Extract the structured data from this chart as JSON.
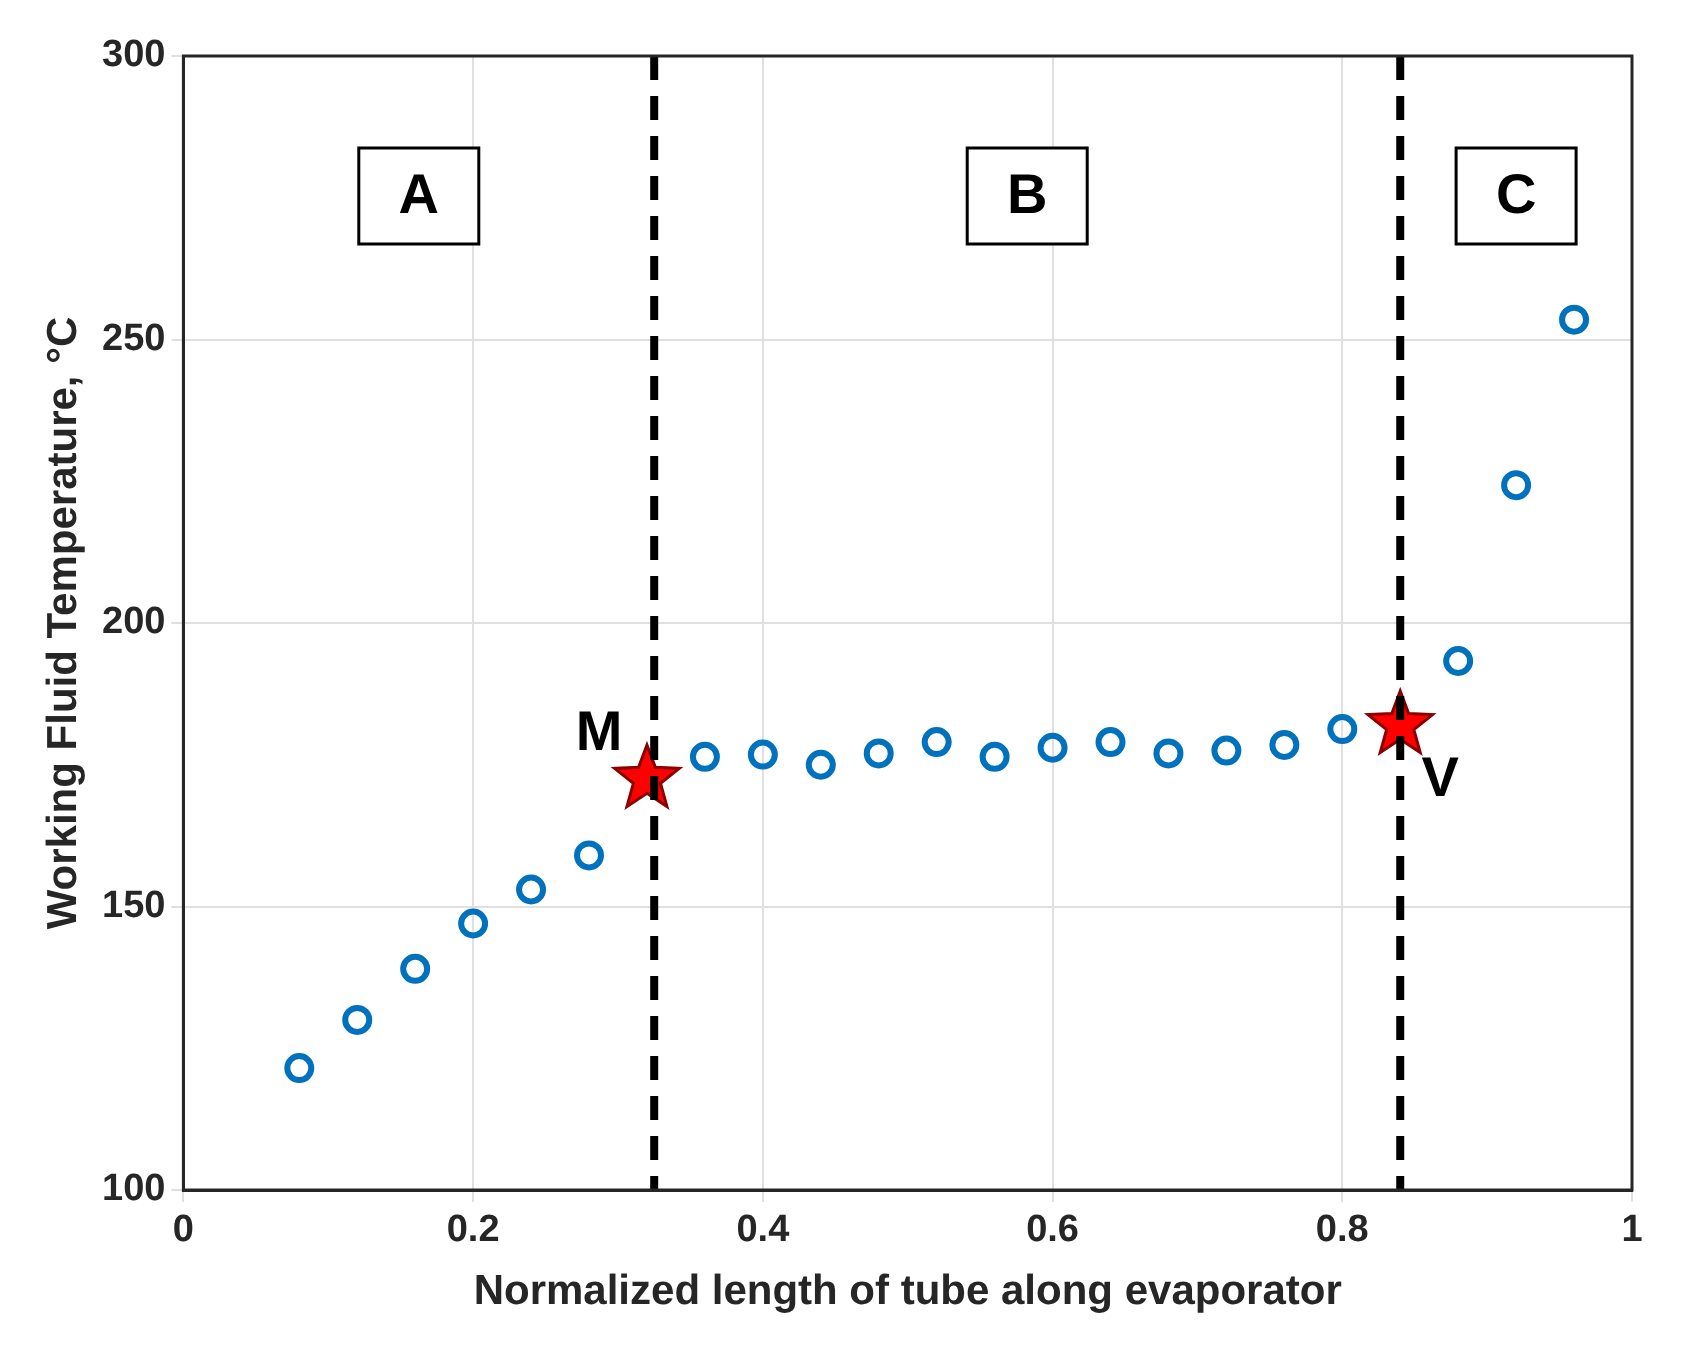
{
  "chart_data": {
    "type": "scatter",
    "xlabel": "Normalized length of tube along evaporator",
    "ylabel": "Working Fluid Temperature, °C",
    "xlim": [
      0,
      1
    ],
    "ylim": [
      100,
      300
    ],
    "xticks": [
      0,
      0.2,
      0.4,
      0.6,
      0.8,
      1
    ],
    "yticks": [
      100,
      150,
      200,
      250,
      300
    ],
    "grid": true,
    "legend": false,
    "series": [
      {
        "color": "#0072bd",
        "marker": "circle",
        "x": [
          0.08,
          0.12,
          0.16,
          0.2,
          0.24,
          0.28,
          0.36,
          0.4,
          0.44,
          0.48,
          0.52,
          0.56,
          0.6,
          0.64,
          0.68,
          0.72,
          0.76,
          0.8,
          0.88,
          0.92,
          0.96
        ],
        "values": [
          121.5,
          130,
          139,
          147,
          153,
          159,
          176.4,
          176.8,
          175,
          177,
          179,
          176.4,
          178,
          179,
          177,
          177.5,
          178.5,
          181.3,
          193.3,
          224.3,
          253.5
        ]
      },
      {
        "color": "#ff0000",
        "marker": "star",
        "x": [
          0.32,
          0.84
        ],
        "values": [
          172.5,
          182
        ]
      }
    ],
    "ref_lines": [
      {
        "axis": "x",
        "value": 0.325,
        "color": "#000000",
        "line_style": "dashed"
      },
      {
        "axis": "x",
        "value": 0.84,
        "color": "#000000",
        "line_style": "dashed"
      }
    ],
    "annotations": [
      "A",
      "B",
      "C",
      {
        "text": "M",
        "x": 0.32,
        "y": 172.5
      },
      {
        "text": "V",
        "x": 0.84,
        "y": 182
      }
    ]
  }
}
